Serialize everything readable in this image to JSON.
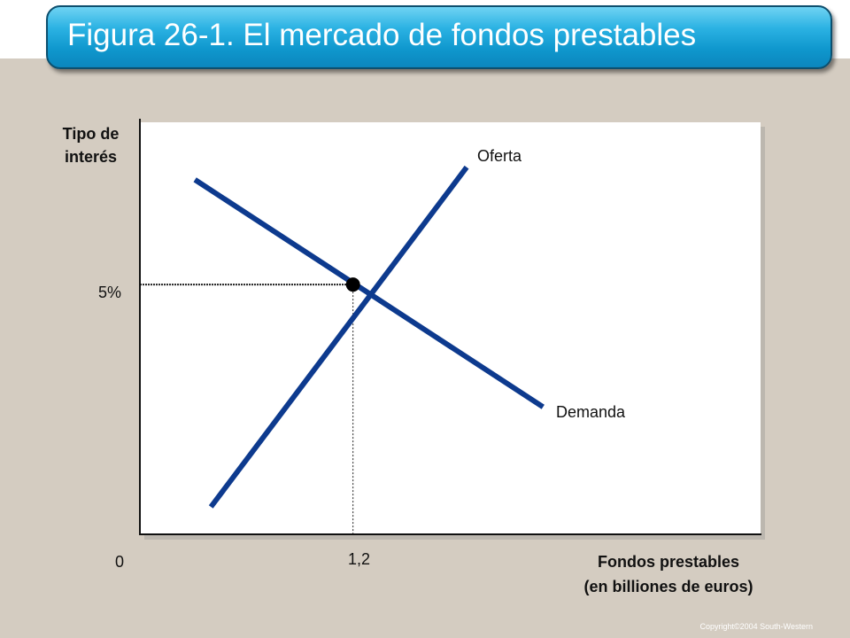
{
  "slide": {
    "title": "Figura 26-1. El mercado de fondos prestables",
    "copyright": "Copyright©2004  South-Western"
  },
  "colors": {
    "background": "#d4ccc1",
    "title_bar": "#1aa6dc",
    "curve": "#0d3a8e",
    "plot_area": "#ffffff"
  },
  "chart_data": {
    "type": "line",
    "ylabel": "Tipo de interés",
    "xlabel": "Fondos prestables (en billiones de euros)",
    "origin_label": "0",
    "x_ticks": [
      {
        "value": 1.2,
        "label": "1,2"
      }
    ],
    "y_ticks": [
      {
        "value": 5,
        "label": "5%"
      }
    ],
    "xlim": [
      0,
      3.5
    ],
    "ylim": [
      0,
      8.25
    ],
    "grid": false,
    "series": [
      {
        "name": "Oferta",
        "x": [
          0.4,
          1.84
        ],
        "y": [
          0.55,
          7.35
        ]
      },
      {
        "name": "Demanda",
        "x": [
          0.31,
          2.27
        ],
        "y": [
          7.1,
          2.55
        ]
      }
    ],
    "equilibrium": {
      "x": 1.2,
      "y": 5
    }
  }
}
